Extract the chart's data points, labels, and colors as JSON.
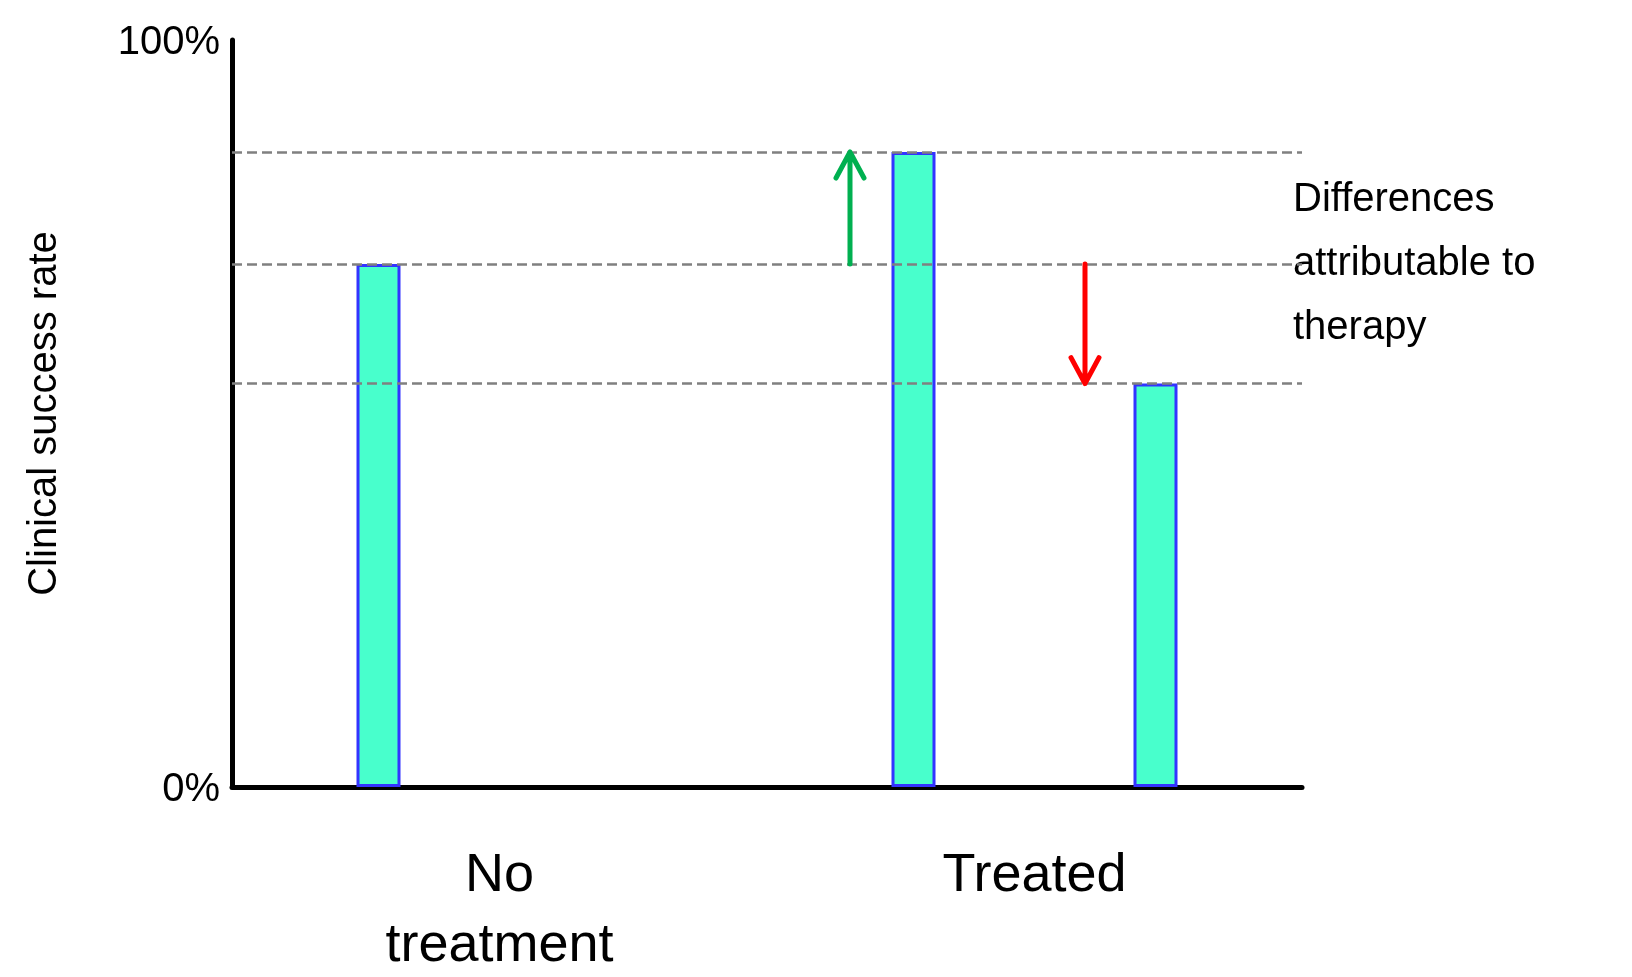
{
  "chart_data": {
    "type": "bar",
    "ylabel": "Clinical success rate",
    "categories": [
      "No treatment",
      "Treated"
    ],
    "series": [
      {
        "color": "#48ffcc",
        "values": [
          70,
          85
        ]
      },
      {
        "color": "#48ffcc",
        "values": [
          null,
          54
        ]
      }
    ],
    "ylim": [
      0,
      100
    ],
    "yticks": [
      {
        "value": 0,
        "label": "0%"
      },
      {
        "value": 100,
        "label": "100%"
      }
    ],
    "grid": false,
    "ref_lines": [
      {
        "axis": "y",
        "value": 85,
        "color": "#808080",
        "line_style": "dashed"
      },
      {
        "axis": "y",
        "value": 70,
        "color": "#808080",
        "line_style": "dashed"
      },
      {
        "axis": "y",
        "value": 54,
        "color": "#808080",
        "line_style": "dashed"
      }
    ],
    "annotations": [
      "Differences\nattributable to\ntherapy"
    ]
  }
}
